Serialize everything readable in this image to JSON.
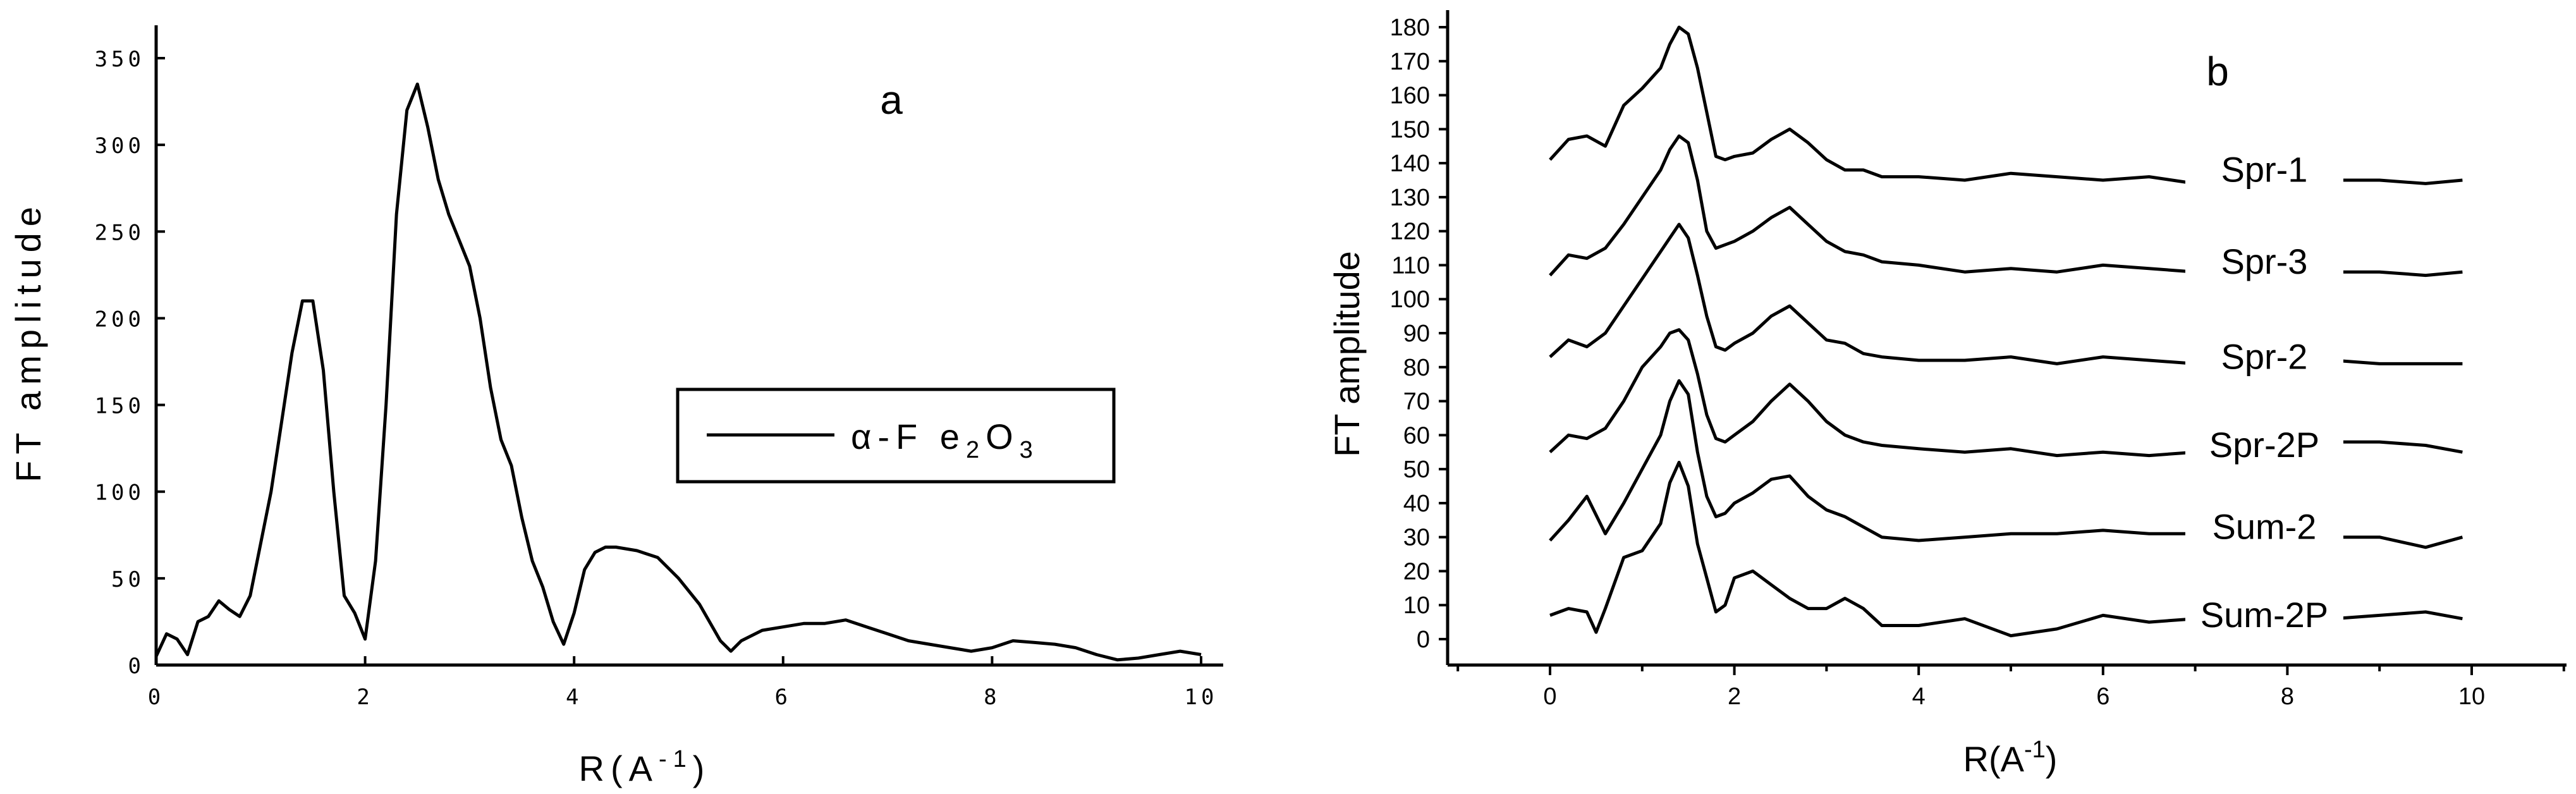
{
  "chart_data": [
    {
      "panel": "a",
      "type": "line",
      "panel_letter": "a",
      "xlabel": "R(A",
      "xlabel_sup": "-1",
      "xlabel_end": ")",
      "ylabel": "FT amplitude",
      "xlim": [
        0,
        10
      ],
      "ylim": [
        0,
        350
      ],
      "xticks": [
        0,
        2,
        4,
        6,
        8,
        10
      ],
      "yticks": [
        0,
        50,
        100,
        150,
        200,
        250,
        300,
        350
      ],
      "grid": false,
      "legend_position": "middle-right",
      "series": [
        {
          "name": "α-Fe2O3",
          "legend_parts": {
            "main": "α-F e",
            "sub1": "2",
            "mid": "O",
            "sub2": "3"
          },
          "x": [
            0,
            0.1,
            0.2,
            0.3,
            0.4,
            0.5,
            0.6,
            0.7,
            0.8,
            0.9,
            1.0,
            1.1,
            1.2,
            1.3,
            1.4,
            1.5,
            1.6,
            1.7,
            1.8,
            1.9,
            2.0,
            2.1,
            2.2,
            2.3,
            2.4,
            2.5,
            2.6,
            2.7,
            2.8,
            2.9,
            3.0,
            3.1,
            3.2,
            3.3,
            3.4,
            3.5,
            3.6,
            3.7,
            3.8,
            3.9,
            4.0,
            4.1,
            4.2,
            4.3,
            4.4,
            4.6,
            4.8,
            5.0,
            5.2,
            5.4,
            5.5,
            5.6,
            5.8,
            6.0,
            6.2,
            6.4,
            6.6,
            6.8,
            7.0,
            7.2,
            7.4,
            7.6,
            7.8,
            8.0,
            8.2,
            8.4,
            8.6,
            8.8,
            9.0,
            9.2,
            9.4,
            9.6,
            9.8,
            10.0
          ],
          "y": [
            5,
            18,
            15,
            6,
            25,
            28,
            37,
            32,
            28,
            40,
            70,
            100,
            140,
            180,
            210,
            210,
            170,
            100,
            40,
            30,
            15,
            60,
            150,
            260,
            320,
            335,
            310,
            280,
            260,
            245,
            230,
            200,
            160,
            130,
            115,
            85,
            60,
            45,
            25,
            12,
            30,
            55,
            65,
            68,
            68,
            66,
            62,
            50,
            35,
            14,
            8,
            14,
            20,
            22,
            24,
            24,
            26,
            22,
            18,
            14,
            12,
            10,
            8,
            10,
            14,
            13,
            12,
            10,
            6,
            3,
            4,
            6,
            8,
            6
          ]
        }
      ]
    },
    {
      "panel": "b",
      "type": "line",
      "panel_letter": "b",
      "xlabel": "R(A",
      "xlabel_sup": "-1",
      "xlabel_end": ")",
      "ylabel": "FT amplitude",
      "xlim": [
        -1,
        11
      ],
      "ylim": [
        -5,
        185
      ],
      "xticks": [
        0,
        2,
        4,
        6,
        8,
        10
      ],
      "yticks": [
        0,
        10,
        20,
        30,
        40,
        50,
        60,
        70,
        80,
        90,
        100,
        110,
        120,
        130,
        140,
        150,
        160,
        170,
        180
      ],
      "grid": false,
      "series": [
        {
          "name": "Spr-1",
          "label_x": 7.75,
          "label_y": 136,
          "x": [
            0,
            0.2,
            0.4,
            0.6,
            0.8,
            1.0,
            1.2,
            1.3,
            1.4,
            1.5,
            1.6,
            1.7,
            1.8,
            1.9,
            2.0,
            2.2,
            2.4,
            2.6,
            2.8,
            3.0,
            3.2,
            3.4,
            3.6,
            4.0,
            4.5,
            5.0,
            5.5,
            6.0,
            6.5,
            7.0,
            7.5,
            8.0,
            8.5,
            9.0,
            9.5,
            9.9
          ],
          "y": [
            141,
            147,
            148,
            145,
            157,
            162,
            168,
            175,
            180,
            178,
            168,
            155,
            142,
            141,
            142,
            143,
            147,
            150,
            146,
            141,
            138,
            138,
            136,
            136,
            135,
            137,
            136,
            135,
            136,
            134,
            135,
            134,
            135,
            135,
            134,
            135
          ]
        },
        {
          "name": "Spr-3",
          "label_x": 7.75,
          "label_y": 109,
          "x": [
            0,
            0.2,
            0.4,
            0.6,
            0.8,
            1.0,
            1.2,
            1.3,
            1.4,
            1.5,
            1.6,
            1.7,
            1.8,
            1.9,
            2.0,
            2.2,
            2.4,
            2.6,
            2.8,
            3.0,
            3.2,
            3.4,
            3.6,
            4.0,
            4.5,
            5.0,
            5.5,
            6.0,
            6.5,
            7.0,
            7.5,
            8.0,
            8.5,
            9.0,
            9.5,
            9.9
          ],
          "y": [
            107,
            113,
            112,
            115,
            122,
            130,
            138,
            144,
            148,
            146,
            135,
            120,
            115,
            116,
            117,
            120,
            124,
            127,
            122,
            117,
            114,
            113,
            111,
            110,
            108,
            109,
            108,
            110,
            109,
            108,
            109,
            108,
            108,
            108,
            107,
            108
          ]
        },
        {
          "name": "Spr-2",
          "label_x": 7.75,
          "label_y": 81,
          "x": [
            0,
            0.2,
            0.4,
            0.6,
            0.8,
            1.0,
            1.2,
            1.3,
            1.4,
            1.5,
            1.6,
            1.7,
            1.8,
            1.9,
            2.0,
            2.2,
            2.4,
            2.6,
            2.8,
            3.0,
            3.2,
            3.4,
            3.6,
            4.0,
            4.5,
            5.0,
            5.5,
            6.0,
            6.5,
            7.0,
            7.5,
            8.0,
            8.5,
            9.0,
            9.5,
            9.9
          ],
          "y": [
            83,
            88,
            86,
            90,
            98,
            106,
            114,
            118,
            122,
            118,
            107,
            95,
            86,
            85,
            87,
            90,
            95,
            98,
            93,
            88,
            87,
            84,
            83,
            82,
            82,
            83,
            81,
            83,
            82,
            81,
            81,
            81,
            82,
            81,
            81,
            81
          ]
        },
        {
          "name": "Spr-2P",
          "label_x": 7.75,
          "label_y": 55,
          "x": [
            0,
            0.2,
            0.4,
            0.6,
            0.8,
            1.0,
            1.2,
            1.3,
            1.4,
            1.5,
            1.6,
            1.7,
            1.8,
            1.9,
            2.0,
            2.2,
            2.4,
            2.6,
            2.8,
            3.0,
            3.2,
            3.4,
            3.6,
            4.0,
            4.5,
            5.0,
            5.5,
            6.0,
            6.5,
            7.0,
            7.5,
            8.0,
            8.5,
            9.0,
            9.5,
            9.9
          ],
          "y": [
            55,
            60,
            59,
            62,
            70,
            80,
            86,
            90,
            91,
            88,
            78,
            66,
            59,
            58,
            60,
            64,
            70,
            75,
            70,
            64,
            60,
            58,
            57,
            56,
            55,
            56,
            54,
            55,
            54,
            55,
            55,
            55,
            58,
            58,
            57,
            55
          ]
        },
        {
          "name": "Sum-2",
          "label_x": 7.75,
          "label_y": 31,
          "x": [
            0,
            0.2,
            0.4,
            0.6,
            0.8,
            1.0,
            1.2,
            1.3,
            1.4,
            1.5,
            1.6,
            1.7,
            1.8,
            1.9,
            2.0,
            2.2,
            2.4,
            2.6,
            2.8,
            3.0,
            3.2,
            3.4,
            3.6,
            4.0,
            4.5,
            5.0,
            5.5,
            6.0,
            6.5,
            7.0,
            7.5,
            8.0,
            8.5,
            9.0,
            9.5,
            9.9
          ],
          "y": [
            29,
            35,
            42,
            31,
            40,
            50,
            60,
            70,
            76,
            72,
            55,
            42,
            36,
            37,
            40,
            43,
            47,
            48,
            42,
            38,
            36,
            33,
            30,
            29,
            30,
            31,
            31,
            32,
            31,
            31,
            31,
            31,
            30,
            30,
            27,
            30
          ]
        },
        {
          "name": "Sum-2P",
          "label_x": 7.75,
          "label_y": 5,
          "x": [
            0,
            0.2,
            0.4,
            0.5,
            0.6,
            0.8,
            1.0,
            1.2,
            1.3,
            1.4,
            1.5,
            1.6,
            1.7,
            1.8,
            1.9,
            2.0,
            2.2,
            2.4,
            2.6,
            2.8,
            3.0,
            3.2,
            3.4,
            3.6,
            4.0,
            4.5,
            5.0,
            5.5,
            6.0,
            6.5,
            7.0,
            7.5,
            8.0,
            8.5,
            9.0,
            9.5,
            9.9
          ],
          "y": [
            7,
            9,
            8,
            2,
            9,
            24,
            26,
            34,
            46,
            52,
            45,
            28,
            18,
            8,
            10,
            18,
            20,
            16,
            12,
            9,
            9,
            12,
            9,
            4,
            4,
            6,
            1,
            3,
            7,
            5,
            6,
            5,
            11,
            6,
            7,
            8,
            6
          ]
        }
      ]
    }
  ]
}
